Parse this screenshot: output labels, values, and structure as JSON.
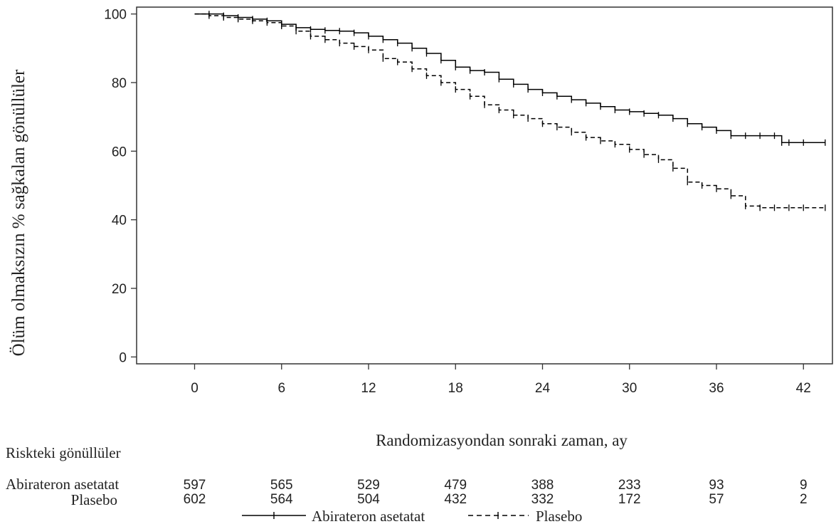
{
  "chart_data": {
    "type": "line",
    "subtype": "kaplan-meier",
    "title": "",
    "xlabel": "Randomizasyondan sonraki zaman, ay",
    "ylabel": "Ölüm olmaksızın % sağkalan gönüllüler",
    "xlim": [
      -4,
      44
    ],
    "ylim": [
      -2,
      102
    ],
    "xticks": [
      0,
      6,
      12,
      18,
      24,
      30,
      36,
      42
    ],
    "yticks": [
      0,
      20,
      40,
      60,
      80,
      100
    ],
    "grid": false,
    "legend_position": "bottom",
    "series": [
      {
        "name": "Abirateron asetatat",
        "style": "solid",
        "points": [
          [
            0,
            100
          ],
          [
            1,
            100
          ],
          [
            2,
            99.5
          ],
          [
            3,
            99
          ],
          [
            4,
            98.5
          ],
          [
            5,
            98
          ],
          [
            6,
            97
          ],
          [
            7,
            96
          ],
          [
            8,
            95.5
          ],
          [
            9,
            95.2
          ],
          [
            10,
            95
          ],
          [
            11,
            94.5
          ],
          [
            12,
            93.5
          ],
          [
            13,
            92.5
          ],
          [
            14,
            91.5
          ],
          [
            15,
            90
          ],
          [
            16,
            88.5
          ],
          [
            17,
            86.5
          ],
          [
            18,
            84.5
          ],
          [
            19,
            83.5
          ],
          [
            20,
            83
          ],
          [
            21,
            81
          ],
          [
            22,
            79.5
          ],
          [
            23,
            78
          ],
          [
            24,
            77
          ],
          [
            25,
            76
          ],
          [
            26,
            75
          ],
          [
            27,
            74
          ],
          [
            28,
            73
          ],
          [
            29,
            72
          ],
          [
            30,
            71.5
          ],
          [
            31,
            71
          ],
          [
            32,
            70.5
          ],
          [
            33,
            69.5
          ],
          [
            34,
            68
          ],
          [
            35,
            67
          ],
          [
            36,
            66
          ],
          [
            37,
            64.5
          ],
          [
            38,
            64.5
          ],
          [
            39,
            64.5
          ],
          [
            40,
            64.5
          ],
          [
            40.5,
            62.5
          ],
          [
            41,
            62.5
          ],
          [
            42,
            62.5
          ],
          [
            43.5,
            62.5
          ]
        ]
      },
      {
        "name": "Plasebo",
        "style": "dashed",
        "points": [
          [
            0,
            100
          ],
          [
            1,
            99.5
          ],
          [
            2,
            99
          ],
          [
            3,
            98.5
          ],
          [
            4,
            98
          ],
          [
            5,
            97.5
          ],
          [
            6,
            96.5
          ],
          [
            7,
            95
          ],
          [
            8,
            93.5
          ],
          [
            9,
            92.5
          ],
          [
            10,
            91.5
          ],
          [
            11,
            90.5
          ],
          [
            12,
            89.5
          ],
          [
            13,
            87
          ],
          [
            14,
            86
          ],
          [
            15,
            84
          ],
          [
            16,
            82
          ],
          [
            17,
            80
          ],
          [
            18,
            78
          ],
          [
            19,
            76
          ],
          [
            20,
            73.5
          ],
          [
            21,
            72
          ],
          [
            22,
            70.5
          ],
          [
            23,
            69.5
          ],
          [
            24,
            68
          ],
          [
            25,
            67
          ],
          [
            26,
            65.5
          ],
          [
            27,
            64
          ],
          [
            28,
            63
          ],
          [
            29,
            62
          ],
          [
            30,
            60.5
          ],
          [
            31,
            59
          ],
          [
            32,
            57.5
          ],
          [
            33,
            55
          ],
          [
            34,
            51
          ],
          [
            35,
            50
          ],
          [
            36,
            49
          ],
          [
            37,
            47
          ],
          [
            38,
            44
          ],
          [
            39,
            43.5
          ],
          [
            40,
            43.5
          ],
          [
            41,
            43.5
          ],
          [
            42,
            43.5
          ],
          [
            43.5,
            43.5
          ]
        ]
      }
    ],
    "risk_table": {
      "title": "Riskteki gönüllüler",
      "times": [
        0,
        6,
        12,
        18,
        24,
        30,
        36,
        42
      ],
      "rows": [
        {
          "label": "Abirateron asetatat",
          "counts": [
            "597",
            "565",
            "529",
            "479",
            "388",
            "233",
            "93",
            "9"
          ]
        },
        {
          "label": "Plasebo",
          "counts": [
            "602",
            "564",
            "504",
            "432",
            "332",
            "172",
            "57",
            "2"
          ]
        }
      ]
    },
    "colors": {
      "line": "#000000",
      "axis": "#333333",
      "text": "#222222"
    }
  }
}
